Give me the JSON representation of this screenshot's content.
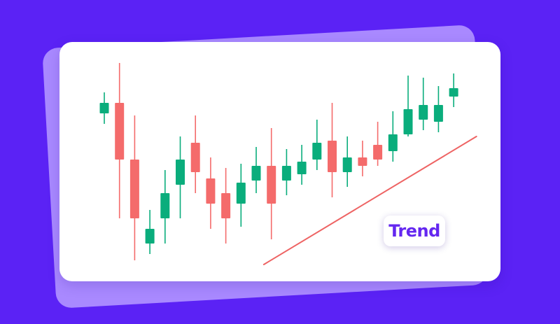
{
  "chart_data": {
    "type": "candlestick",
    "title": "",
    "xlabel": "",
    "ylabel": "",
    "ylim": [
      0,
      100
    ],
    "grid": false,
    "series": [
      {
        "values": [
          {
            "open": 72,
            "close": 77,
            "high": 82,
            "low": 67
          },
          {
            "open": 77,
            "close": 50,
            "high": 96,
            "low": 22
          },
          {
            "open": 50,
            "close": 22,
            "high": 71,
            "low": 2
          },
          {
            "open": 10,
            "close": 17,
            "high": 26,
            "low": 5
          },
          {
            "open": 22,
            "close": 34,
            "high": 45,
            "low": 10
          },
          {
            "open": 38,
            "close": 50,
            "high": 61,
            "low": 22
          },
          {
            "open": 58,
            "close": 44,
            "high": 71,
            "low": 34
          },
          {
            "open": 41,
            "close": 29,
            "high": 51,
            "low": 17
          },
          {
            "open": 34,
            "close": 22,
            "high": 46,
            "low": 10
          },
          {
            "open": 29,
            "close": 39,
            "high": 48,
            "low": 18
          },
          {
            "open": 40,
            "close": 47,
            "high": 56,
            "low": 34
          },
          {
            "open": 47,
            "close": 29,
            "high": 65,
            "low": 12
          },
          {
            "open": 40,
            "close": 47,
            "high": 55,
            "low": 33
          },
          {
            "open": 43,
            "close": 49,
            "high": 57,
            "low": 38
          },
          {
            "open": 50,
            "close": 58,
            "high": 69,
            "low": 45
          },
          {
            "open": 59,
            "close": 44,
            "high": 77,
            "low": 32
          },
          {
            "open": 44,
            "close": 51,
            "high": 61,
            "low": 37
          },
          {
            "open": 51,
            "close": 47,
            "high": 59,
            "low": 42
          },
          {
            "open": 57,
            "close": 50,
            "high": 68,
            "low": 47
          },
          {
            "open": 54,
            "close": 62,
            "high": 73,
            "low": 49
          },
          {
            "open": 62,
            "close": 74,
            "high": 90,
            "low": 61
          },
          {
            "open": 69,
            "close": 76,
            "high": 89,
            "low": 64
          },
          {
            "open": 68,
            "close": 76,
            "high": 85,
            "low": 63
          },
          {
            "open": 80,
            "close": 84,
            "high": 91,
            "low": 75
          }
        ]
      }
    ],
    "trendline": {
      "from": {
        "index": 10.5,
        "value": 0
      },
      "to": {
        "index": 24.5,
        "value": 61
      }
    },
    "annotation": "Trend",
    "colors": {
      "up": "#0aad7c",
      "down": "#f46b6b",
      "trendline": "#ee6363",
      "background": "#5b22f5",
      "back_card": "#a989ff",
      "badge_text": "#6427f0"
    }
  }
}
